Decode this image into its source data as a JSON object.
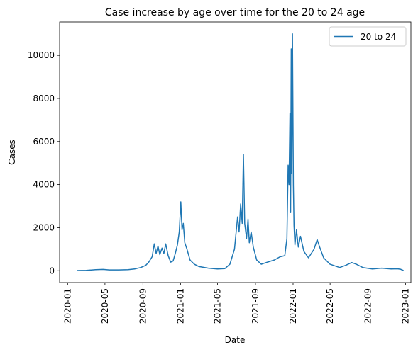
{
  "chart_data": {
    "type": "line",
    "title": "Case increase by age over time for the 20 to 24 age",
    "xlabel": "Date",
    "ylabel": "Cases",
    "xlim": [
      "2019-12-06",
      "2023-01-18"
    ],
    "ylim": [
      -550,
      11550
    ],
    "yticks": [
      0,
      2000,
      4000,
      6000,
      8000,
      10000
    ],
    "xticks": [
      "2020-01",
      "2020-05",
      "2020-09",
      "2021-01",
      "2021-05",
      "2021-09",
      "2022-01",
      "2022-05",
      "2022-09",
      "2023-01"
    ],
    "grid": false,
    "legend": "top-right",
    "color": "#1f77b4",
    "series": [
      {
        "name": "20 to 24",
        "points": [
          [
            "2020-02-01",
            10
          ],
          [
            "2020-03-01",
            20
          ],
          [
            "2020-04-01",
            50
          ],
          [
            "2020-04-25",
            60
          ],
          [
            "2020-05-15",
            40
          ],
          [
            "2020-06-15",
            40
          ],
          [
            "2020-07-15",
            50
          ],
          [
            "2020-08-05",
            80
          ],
          [
            "2020-08-25",
            150
          ],
          [
            "2020-09-10",
            250
          ],
          [
            "2020-09-20",
            400
          ],
          [
            "2020-10-01",
            650
          ],
          [
            "2020-10-08",
            1250
          ],
          [
            "2020-10-14",
            800
          ],
          [
            "2020-10-20",
            1150
          ],
          [
            "2020-10-26",
            750
          ],
          [
            "2020-11-02",
            1050
          ],
          [
            "2020-11-08",
            800
          ],
          [
            "2020-11-14",
            1250
          ],
          [
            "2020-11-22",
            700
          ],
          [
            "2020-11-30",
            400
          ],
          [
            "2020-12-08",
            450
          ],
          [
            "2020-12-15",
            800
          ],
          [
            "2020-12-22",
            1200
          ],
          [
            "2020-12-28",
            1800
          ],
          [
            "2021-01-02",
            3200
          ],
          [
            "2021-01-06",
            1900
          ],
          [
            "2021-01-10",
            2200
          ],
          [
            "2021-01-15",
            1300
          ],
          [
            "2021-01-22",
            1000
          ],
          [
            "2021-02-01",
            500
          ],
          [
            "2021-02-15",
            300
          ],
          [
            "2021-03-01",
            200
          ],
          [
            "2021-04-01",
            120
          ],
          [
            "2021-05-01",
            80
          ],
          [
            "2021-05-25",
            100
          ],
          [
            "2021-06-10",
            300
          ],
          [
            "2021-06-25",
            1000
          ],
          [
            "2021-07-05",
            2500
          ],
          [
            "2021-07-10",
            1800
          ],
          [
            "2021-07-15",
            3100
          ],
          [
            "2021-07-20",
            2200
          ],
          [
            "2021-07-24",
            5400
          ],
          [
            "2021-07-28",
            2200
          ],
          [
            "2021-08-03",
            1500
          ],
          [
            "2021-08-08",
            2400
          ],
          [
            "2021-08-12",
            1300
          ],
          [
            "2021-08-18",
            1800
          ],
          [
            "2021-08-25",
            1100
          ],
          [
            "2021-09-05",
            500
          ],
          [
            "2021-09-20",
            300
          ],
          [
            "2021-10-10",
            400
          ],
          [
            "2021-11-01",
            500
          ],
          [
            "2021-11-20",
            650
          ],
          [
            "2021-12-05",
            700
          ],
          [
            "2021-12-12",
            1500
          ],
          [
            "2021-12-16",
            4900
          ],
          [
            "2021-12-19",
            4000
          ],
          [
            "2021-12-22",
            7300
          ],
          [
            "2021-12-24",
            2700
          ],
          [
            "2021-12-26",
            10300
          ],
          [
            "2021-12-28",
            4500
          ],
          [
            "2021-12-30",
            11000
          ],
          [
            "2022-01-02",
            4000
          ],
          [
            "2022-01-04",
            2100
          ],
          [
            "2022-01-07",
            1200
          ],
          [
            "2022-01-12",
            1900
          ],
          [
            "2022-01-18",
            1100
          ],
          [
            "2022-01-25",
            1600
          ],
          [
            "2022-02-05",
            900
          ],
          [
            "2022-02-20",
            600
          ],
          [
            "2022-03-01",
            800
          ],
          [
            "2022-03-10",
            1000
          ],
          [
            "2022-03-20",
            1450
          ],
          [
            "2022-03-28",
            1100
          ],
          [
            "2022-04-10",
            600
          ],
          [
            "2022-05-01",
            300
          ],
          [
            "2022-06-01",
            150
          ],
          [
            "2022-06-20",
            250
          ],
          [
            "2022-07-10",
            380
          ],
          [
            "2022-07-25",
            300
          ],
          [
            "2022-08-15",
            150
          ],
          [
            "2022-09-15",
            80
          ],
          [
            "2022-10-15",
            120
          ],
          [
            "2022-11-15",
            80
          ],
          [
            "2022-12-05",
            90
          ],
          [
            "2022-12-15",
            70
          ],
          [
            "2022-12-25",
            10
          ]
        ]
      }
    ]
  }
}
